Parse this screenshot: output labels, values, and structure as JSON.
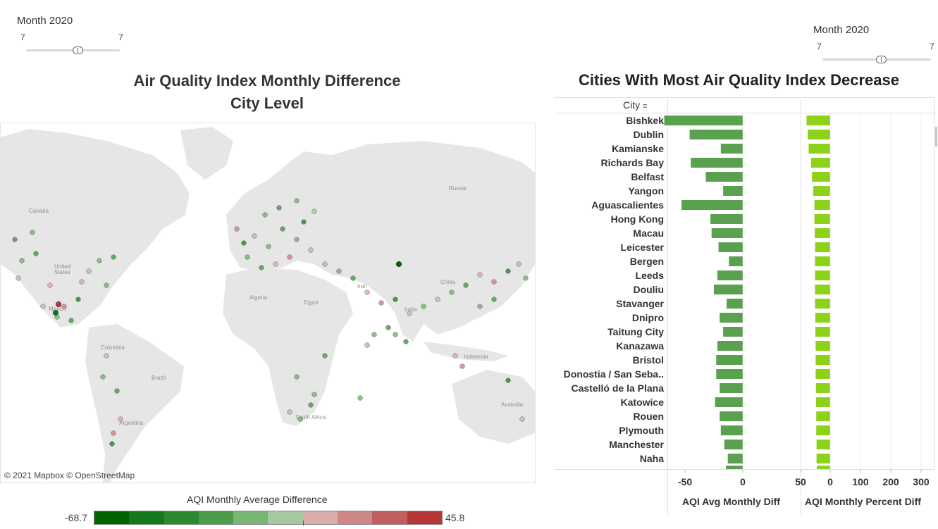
{
  "left_filter": {
    "title": "Month 2020",
    "min_value": "7",
    "max_value": "7"
  },
  "right_filter": {
    "title": "Month 2020",
    "min_value": "7",
    "max_value": "7"
  },
  "map": {
    "title_line1": "Air Quality Index Monthly Difference",
    "title_line2": "City Level",
    "copyright": "© 2021 Mapbox © OpenStreetMap",
    "labels": [
      "Canada",
      "United States",
      "Mexico",
      "Colombia",
      "Brazil",
      "Argentina",
      "Algeria",
      "Egypt",
      "Russia",
      "China",
      "Iran",
      "India",
      "Indonesia",
      "Australia",
      "South Africa"
    ]
  },
  "legend": {
    "title": "AQI Monthly Average Difference",
    "min": "-68.7",
    "max": "45.8",
    "colors": [
      "#006400",
      "#127a1a",
      "#2b8a2d",
      "#4d9c4b",
      "#79b574",
      "#a4c9a2",
      "#d9adac",
      "#cd8788",
      "#c15e60",
      "#b83638"
    ]
  },
  "bars": {
    "title": "Cities With Most Air Quality Index Decrease",
    "city_header": "City",
    "avg_axis_label": "AQI Avg Monthly Diff",
    "pct_axis_label": "AQI Monthly Percent Diff",
    "avg_ticks": [
      "-50",
      "0",
      "50"
    ],
    "pct_ticks": [
      "0",
      "100",
      "200",
      "300"
    ],
    "avg_color": "#59a14f",
    "pct_color": "#8cd317"
  },
  "chart_data": {
    "type": "bar",
    "title": "Cities With Most Air Quality Index Decrease",
    "categories": [
      "Bishkek",
      "Dublin",
      "Kamianske",
      "Richards Bay",
      "Belfast",
      "Yangon",
      "Aguascalientes",
      "Hong Kong",
      "Macau",
      "Leicester",
      "Bergen",
      "Leeds",
      "Douliu",
      "Stavanger",
      "Dnipro",
      "Taitung City",
      "Kanazawa",
      "Bristol",
      "Donostia / San Seba..",
      "Castelló de la Plana",
      "Katowice",
      "Rouen",
      "Plymouth",
      "Manchester",
      "Naha"
    ],
    "series": [
      {
        "name": "AQI Avg Monthly Diff",
        "values": [
          -68,
          -46,
          -19,
          -45,
          -32,
          -17,
          -53,
          -28,
          -27,
          -21,
          -12,
          -22,
          -25,
          -14,
          -20,
          -17,
          -22,
          -23,
          -23,
          -20,
          -24,
          -20,
          -19,
          -16,
          -13
        ]
      },
      {
        "name": "AQI Monthly Percent Diff",
        "values": [
          -78,
          -74,
          -71,
          -63,
          -60,
          -56,
          -52,
          -52,
          -51,
          -50,
          -50,
          -50,
          -50,
          -50,
          -49,
          -49,
          -48,
          -48,
          -48,
          -47,
          -47,
          -46,
          -46,
          -45,
          -45
        ]
      }
    ],
    "xlim_avg": [
      -70,
      50
    ],
    "xlim_pct": [
      -80,
      340
    ]
  }
}
